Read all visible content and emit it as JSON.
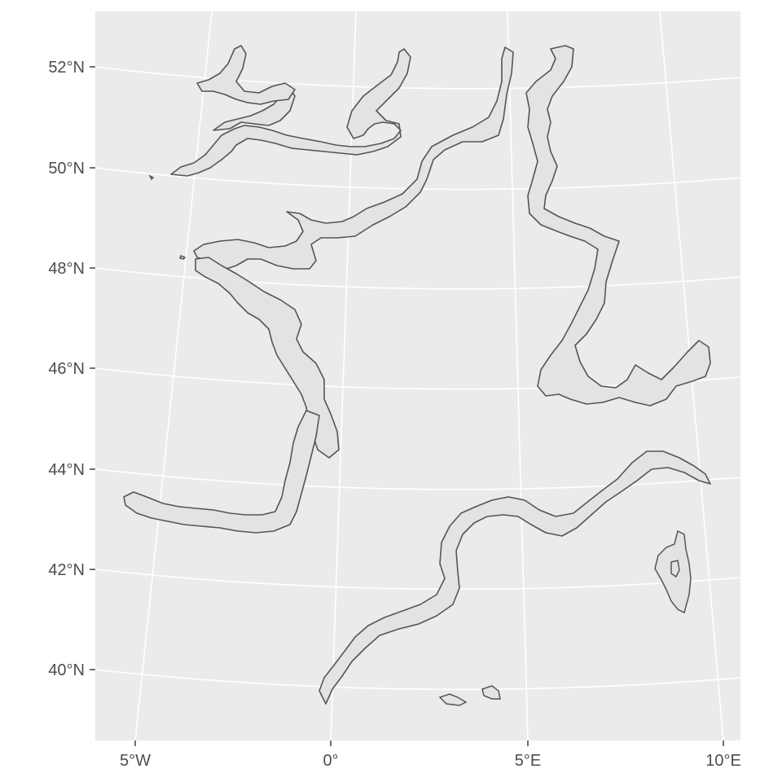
{
  "map": {
    "panel_background": "#ebebeb",
    "gridline_color": "#ffffff",
    "outline_color": "#555555",
    "fill_color": "#e3e3e3",
    "y_axis": {
      "labels": [
        "52°N",
        "50°N",
        "48°N",
        "46°N",
        "44°N",
        "42°N",
        "40°N"
      ]
    },
    "x_axis": {
      "labels": [
        "5°W",
        "0°",
        "5°E",
        "10°E"
      ]
    },
    "features": [
      "english-channel-coast-buffer",
      "belgian-coast-buffer",
      "dutch-german-coast-buffer",
      "french-atlantic-coast-buffer",
      "northern-spain-coast-buffer",
      "alpine-border-buffer",
      "mediterranean-coast-buffer",
      "corsica-island",
      "balearic-islands"
    ]
  }
}
